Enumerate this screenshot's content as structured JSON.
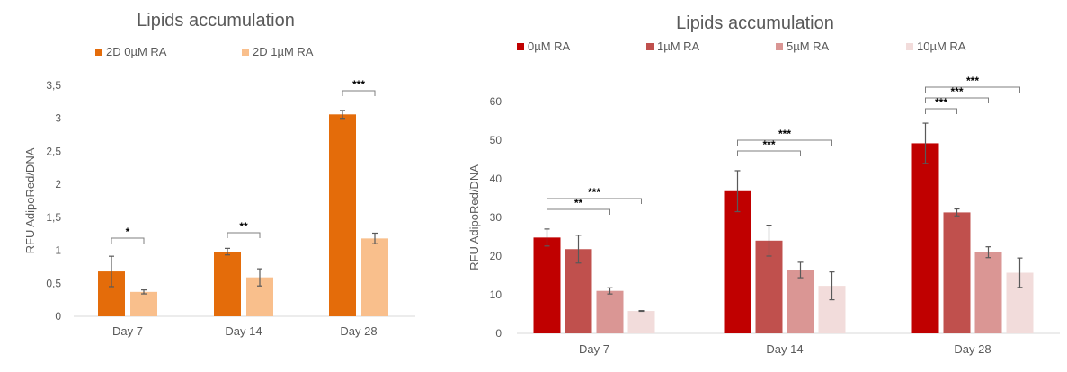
{
  "chart_data": [
    {
      "type": "bar",
      "title": "Lipids accumulation",
      "xlabel": "",
      "ylabel": "RFU AdipoRed/DNA",
      "ylim": [
        0,
        3.5
      ],
      "yticks": [
        "0",
        "0,5",
        "1",
        "1,5",
        "2",
        "2,5",
        "3",
        "3,5"
      ],
      "categories": [
        "Day 7",
        "Day 14",
        "Day 28"
      ],
      "legend_position": "top",
      "grid": false,
      "series": [
        {
          "name": "2D 0µM RA",
          "color": "#E46C0A",
          "values": [
            0.68,
            0.98,
            3.06
          ],
          "errors": [
            0.23,
            0.05,
            0.06
          ]
        },
        {
          "name": "2D 1µM RA",
          "color": "#F9BF8C",
          "values": [
            0.37,
            0.59,
            1.18
          ],
          "errors": [
            0.03,
            0.13,
            0.08
          ]
        }
      ],
      "significance": [
        {
          "category": 0,
          "from": 0,
          "to": 1,
          "label": "*"
        },
        {
          "category": 1,
          "from": 0,
          "to": 1,
          "label": "**"
        },
        {
          "category": 2,
          "from": 0,
          "to": 1,
          "label": "***"
        }
      ]
    },
    {
      "type": "bar",
      "title": "Lipids accumulation",
      "xlabel": "",
      "ylabel": "RFU AdipoRed/DNA",
      "ylim": [
        0,
        60
      ],
      "yticks": [
        "0",
        "10",
        "20",
        "30",
        "40",
        "50",
        "60"
      ],
      "categories": [
        "Day 7",
        "Day 14",
        "Day 28"
      ],
      "legend_position": "top",
      "grid": false,
      "series": [
        {
          "name": "0µM RA",
          "color": "#C00000",
          "values": [
            24.8,
            36.8,
            49.2
          ],
          "errors": [
            2.2,
            5.3,
            5.2
          ]
        },
        {
          "name": "1µM RA",
          "color": "#C0504D",
          "values": [
            21.8,
            24.0,
            31.3
          ],
          "errors": [
            3.6,
            4.0,
            0.9
          ]
        },
        {
          "name": "5µM RA",
          "color": "#DA9694",
          "values": [
            11.0,
            16.4,
            21.0
          ],
          "errors": [
            0.8,
            2.0,
            1.4
          ]
        },
        {
          "name": "10µM RA",
          "color": "#F2DCDB",
          "values": [
            5.8,
            12.3,
            15.7
          ],
          "errors": [
            0.1,
            3.6,
            3.8
          ]
        }
      ],
      "significance": [
        {
          "category": 0,
          "from": 0,
          "to": 2,
          "label": "**"
        },
        {
          "category": 0,
          "from": 0,
          "to": 3,
          "label": "***"
        },
        {
          "category": 1,
          "from": 0,
          "to": 2,
          "label": "***"
        },
        {
          "category": 1,
          "from": 0,
          "to": 3,
          "label": "***"
        },
        {
          "category": 2,
          "from": 0,
          "to": 1,
          "label": "***"
        },
        {
          "category": 2,
          "from": 0,
          "to": 2,
          "label": "***"
        },
        {
          "category": 2,
          "from": 0,
          "to": 3,
          "label": "***"
        }
      ]
    }
  ]
}
